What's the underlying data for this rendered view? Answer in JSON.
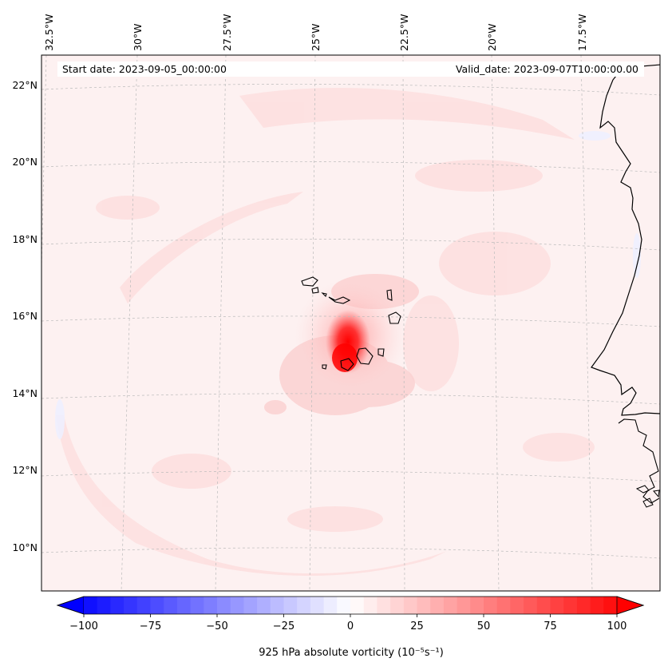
{
  "header": {
    "start_date": "Start date: 2023-09-05_00:00:00",
    "valid_date": "Valid_date: 2023-09-07T10:00:00.00"
  },
  "longitude_labels": [
    "32.5°W",
    "30°W",
    "27.5°W",
    "25°W",
    "22.5°W",
    "20°W",
    "17.5°W"
  ],
  "latitude_labels": [
    "22°N",
    "20°N",
    "18°N",
    "16°N",
    "14°N",
    "12°N",
    "10°N"
  ],
  "colorbar": {
    "ticks": [
      "−100",
      "−75",
      "−50",
      "−25",
      "0",
      "25",
      "50",
      "75",
      "100"
    ],
    "tick_values": [
      -100,
      -75,
      -50,
      -25,
      0,
      25,
      50,
      75,
      100
    ],
    "range": [
      -100,
      100
    ],
    "label": "925 hPa absolute vorticity (10⁻⁵s⁻¹)",
    "low_color": "#0000ff",
    "mid_color": "#ffffff",
    "high_color": "#ff0000"
  },
  "map": {
    "field_max_location": "near 24.5°W, 15°N (Cape Verde)",
    "coast_color": "#000000",
    "gridline_color": "#bbbbbb"
  }
}
